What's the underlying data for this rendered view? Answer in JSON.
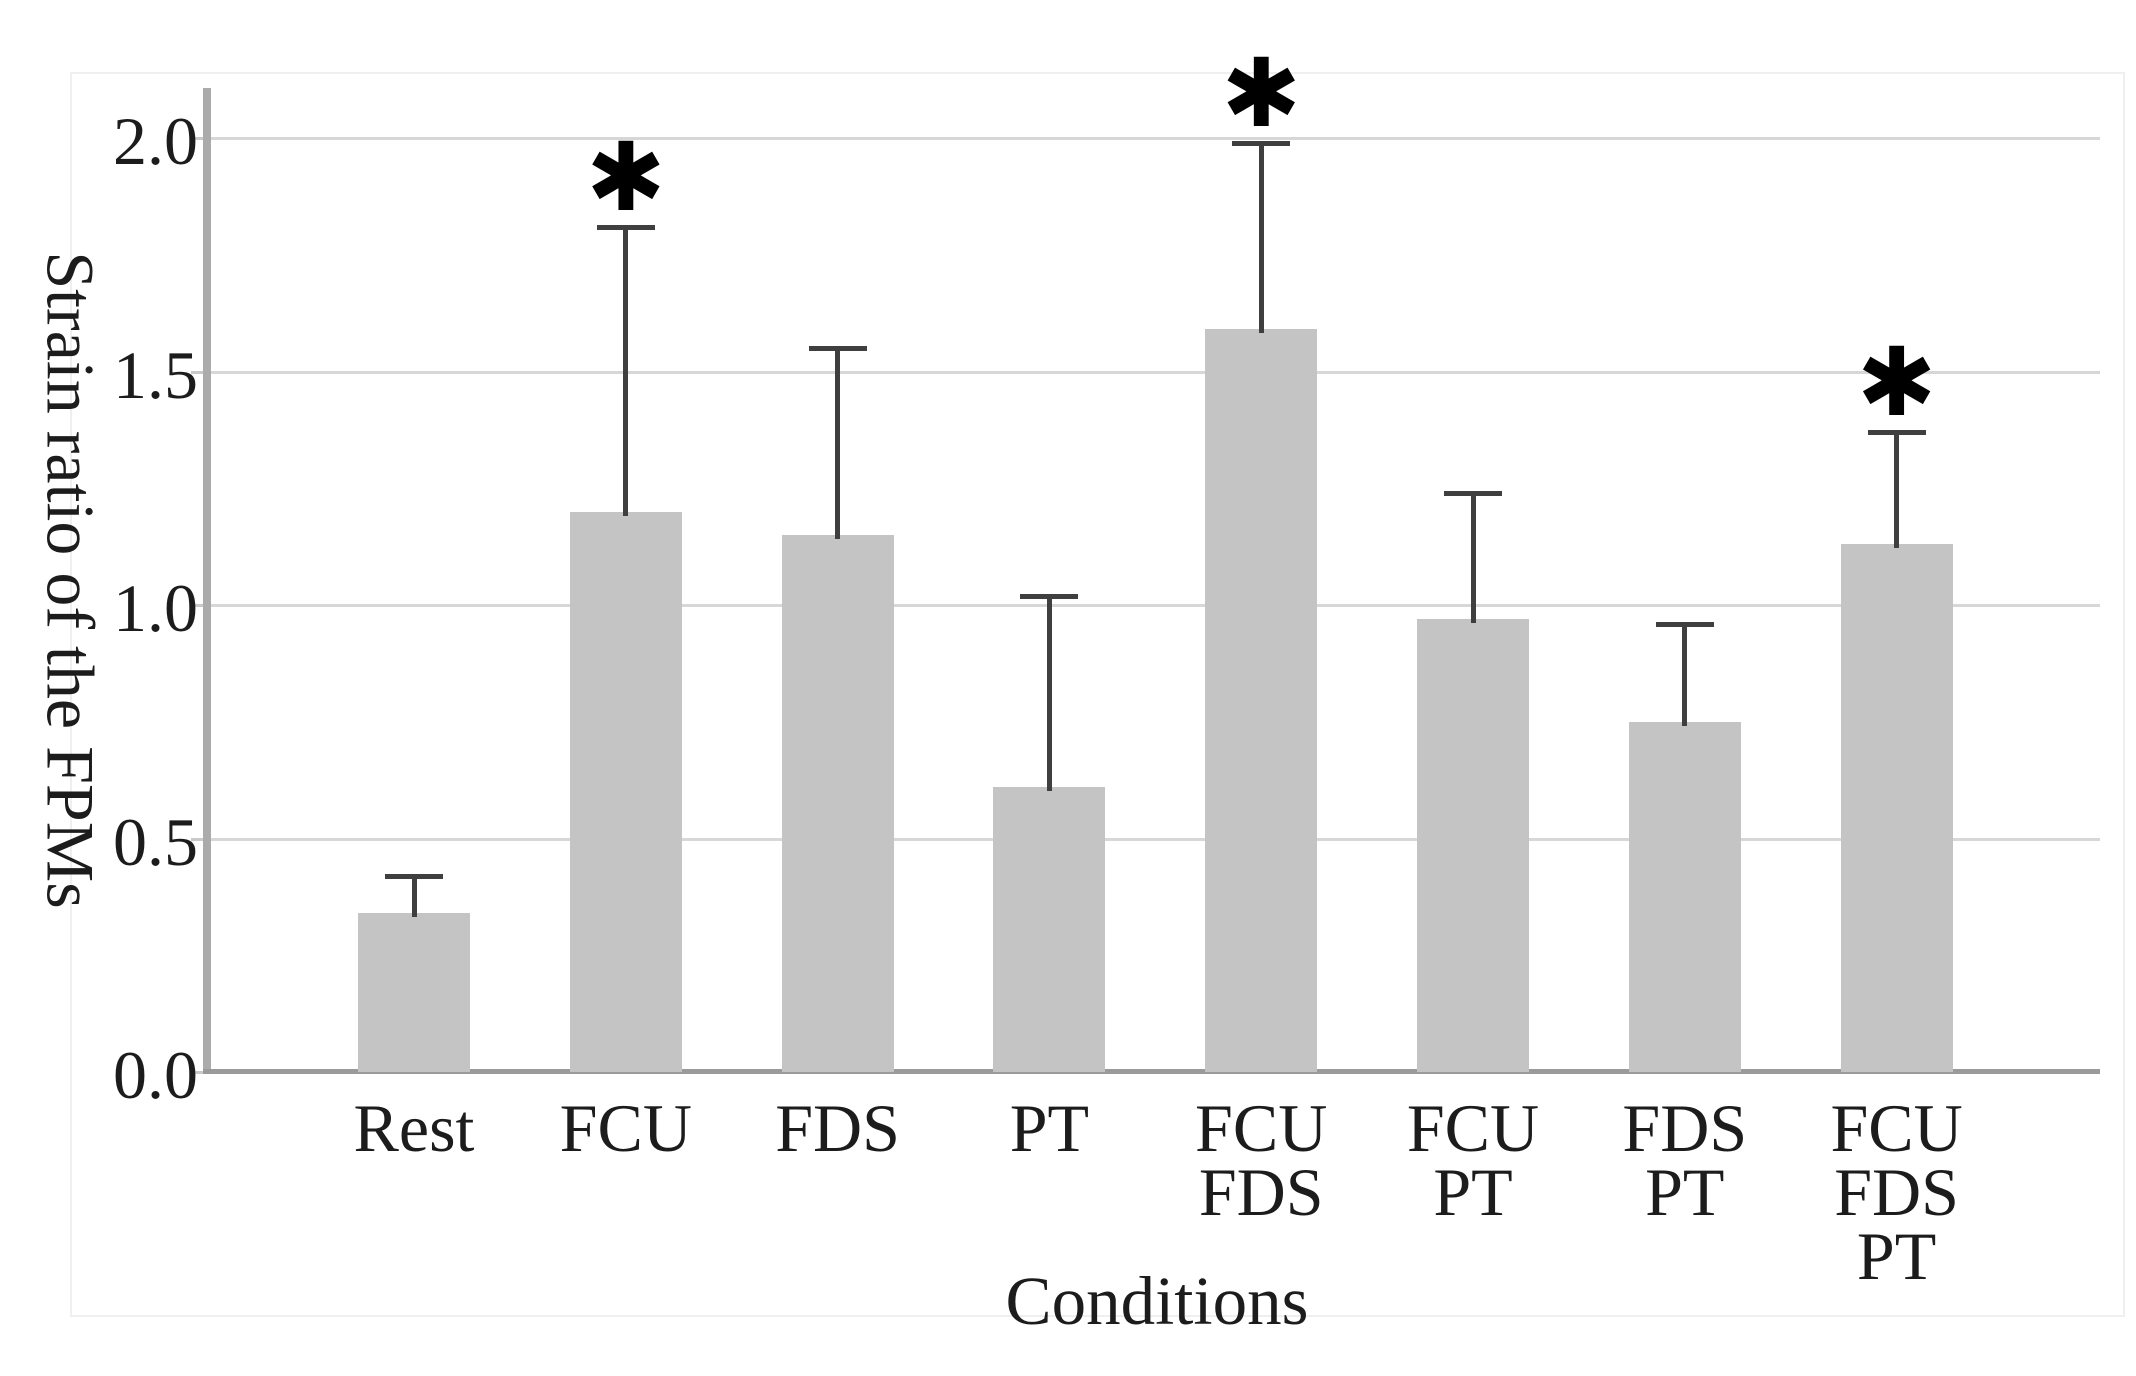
{
  "figure": {
    "y_axis_title": "Strain ratio of the FPMs",
    "x_axis_title": "Conditions",
    "significance_marker": "✱"
  },
  "chart_data": {
    "type": "bar",
    "title": "",
    "xlabel": "Conditions",
    "ylabel": "Strain ratio of the FPMs",
    "categories": [
      "Rest",
      "FCU",
      "FDS",
      "PT",
      "FCU FDS",
      "FCU PT",
      "FDS PT",
      "FCU FDS PT"
    ],
    "values": [
      0.34,
      1.2,
      1.15,
      0.61,
      1.59,
      0.97,
      0.75,
      1.13
    ],
    "error_upper_sd": [
      0.08,
      0.61,
      0.4,
      0.41,
      0.4,
      0.27,
      0.21,
      0.24
    ],
    "significant": [
      false,
      true,
      false,
      false,
      true,
      false,
      false,
      true
    ],
    "significance_marker": "✱",
    "ylim": [
      0.0,
      2.14
    ],
    "yticks": [
      0.0,
      0.5,
      1.0,
      1.5,
      2.0
    ],
    "ytick_labels": [
      "0.0",
      "0.5",
      "1.0",
      "1.5",
      "2.0"
    ],
    "grid": true,
    "legend": null,
    "error_bars": "upper-only",
    "colors": {
      "bar": "#c4c4c4",
      "error": "#3f3f3f",
      "grid": "#d7d7d7",
      "axis": "#ababab",
      "baseline": "#9a9a9a",
      "text": "#1c1c1c",
      "panel_border": "#efefef",
      "background": "#ffffff"
    }
  }
}
